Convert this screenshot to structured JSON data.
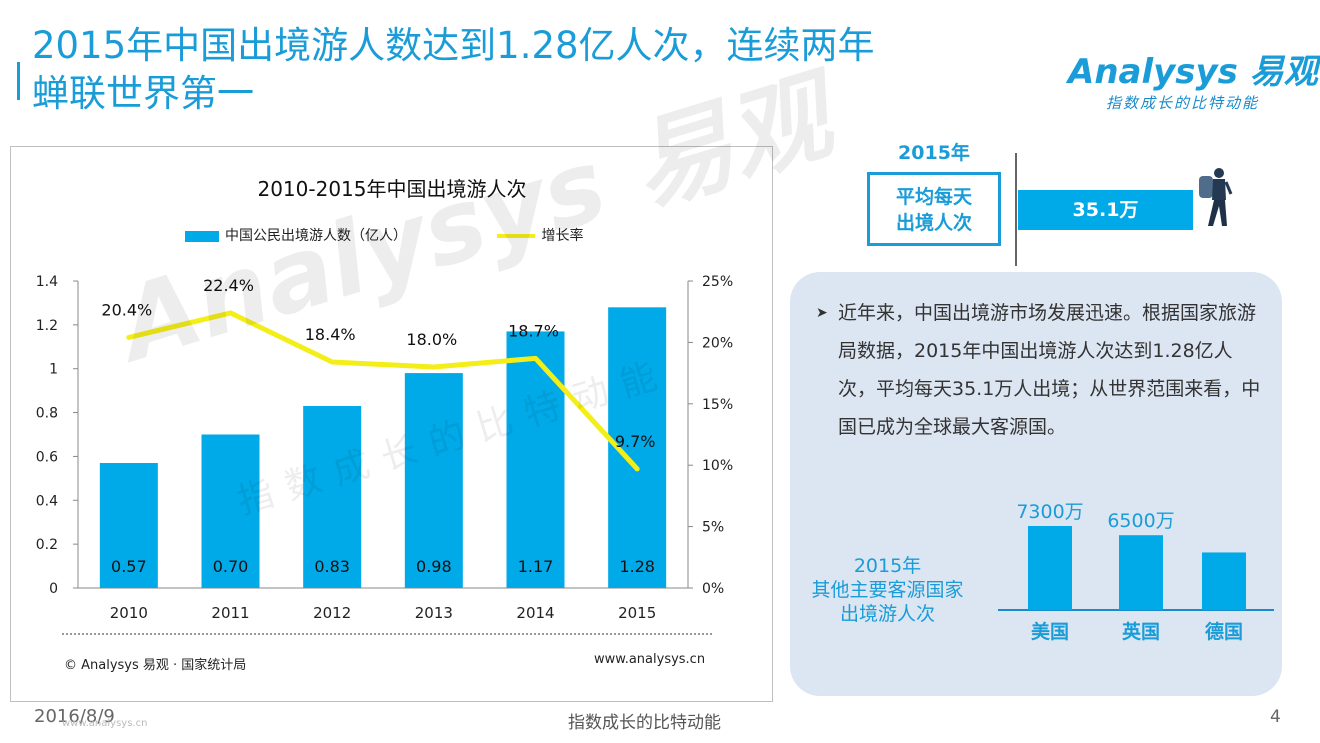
{
  "header": {
    "title_line1": "2015年中国出境游人数达到1.28亿人次，连续两年",
    "title_line2": "蝉联世界第一",
    "logo_text": "Analysys 易观",
    "logo_slogan": "指数成长的比特动能"
  },
  "chart_data": {
    "type": "bar+line",
    "title": "2010-2015年中国出境游人次",
    "categories": [
      "2010",
      "2011",
      "2012",
      "2013",
      "2014",
      "2015"
    ],
    "series": [
      {
        "name": "中国公民出境游人数（亿人）",
        "type": "bar",
        "axis": "left",
        "values": [
          0.57,
          0.7,
          0.83,
          0.98,
          1.17,
          1.28
        ],
        "labels": [
          "0.57",
          "0.70",
          "0.83",
          "0.98",
          "1.17",
          "1.28"
        ]
      },
      {
        "name": "增长率",
        "type": "line",
        "axis": "right",
        "values": [
          20.4,
          22.4,
          18.4,
          18.0,
          18.7,
          9.7
        ],
        "labels": [
          "20.4%",
          "22.4%",
          "18.4%",
          "18.0%",
          "18.7%",
          "9.7%"
        ]
      }
    ],
    "y_left": {
      "ticks": [
        "0",
        "0.2",
        "0.4",
        "0.6",
        "0.8",
        "1",
        "1.2",
        "1.4"
      ],
      "range": [
        0,
        1.4
      ]
    },
    "y_right": {
      "ticks": [
        "0%",
        "5%",
        "10%",
        "15%",
        "20%",
        "25%"
      ],
      "range": [
        0,
        25
      ]
    },
    "source_left": "© Analysys 易观 · 国家统计局",
    "source_right": "www.analysys.cn",
    "colors": {
      "bar": "#00a9e8",
      "line": "#f4ee18"
    }
  },
  "watermark": {
    "text": "Analysys 易观",
    "slogan": "指数成长的比特动能"
  },
  "daily": {
    "year": "2015年",
    "label_line1": "平均每天",
    "label_line2": "出境人次",
    "value": "35.1万"
  },
  "summary": {
    "bullet": "近年来，中国出境游市场发展迅速。根据国家旅游局数据，2015年中国出境游人次达到1.28亿人次，平均每天35.1万人出境；从世界范围来看，中国已成为全球最大客源国。"
  },
  "other_countries": {
    "label_line1": "2015年",
    "label_line2": "其他主要客源国家",
    "label_line3": "出境游人次",
    "chart_data": {
      "type": "bar",
      "categories": [
        "美国",
        "英国",
        "德国"
      ],
      "values": [
        7300,
        6500,
        5000
      ],
      "labels": [
        "7300万",
        "6500万",
        ""
      ]
    }
  },
  "footer": {
    "date": "2016/8/9",
    "slogan": "指数成长的比特动能",
    "page": "4",
    "url": "www.analysys.cn"
  },
  "colors": {
    "accent": "#1a9cd8",
    "bar": "#00a9e8",
    "line": "#f4ee18",
    "panel": "#dce6f2"
  }
}
